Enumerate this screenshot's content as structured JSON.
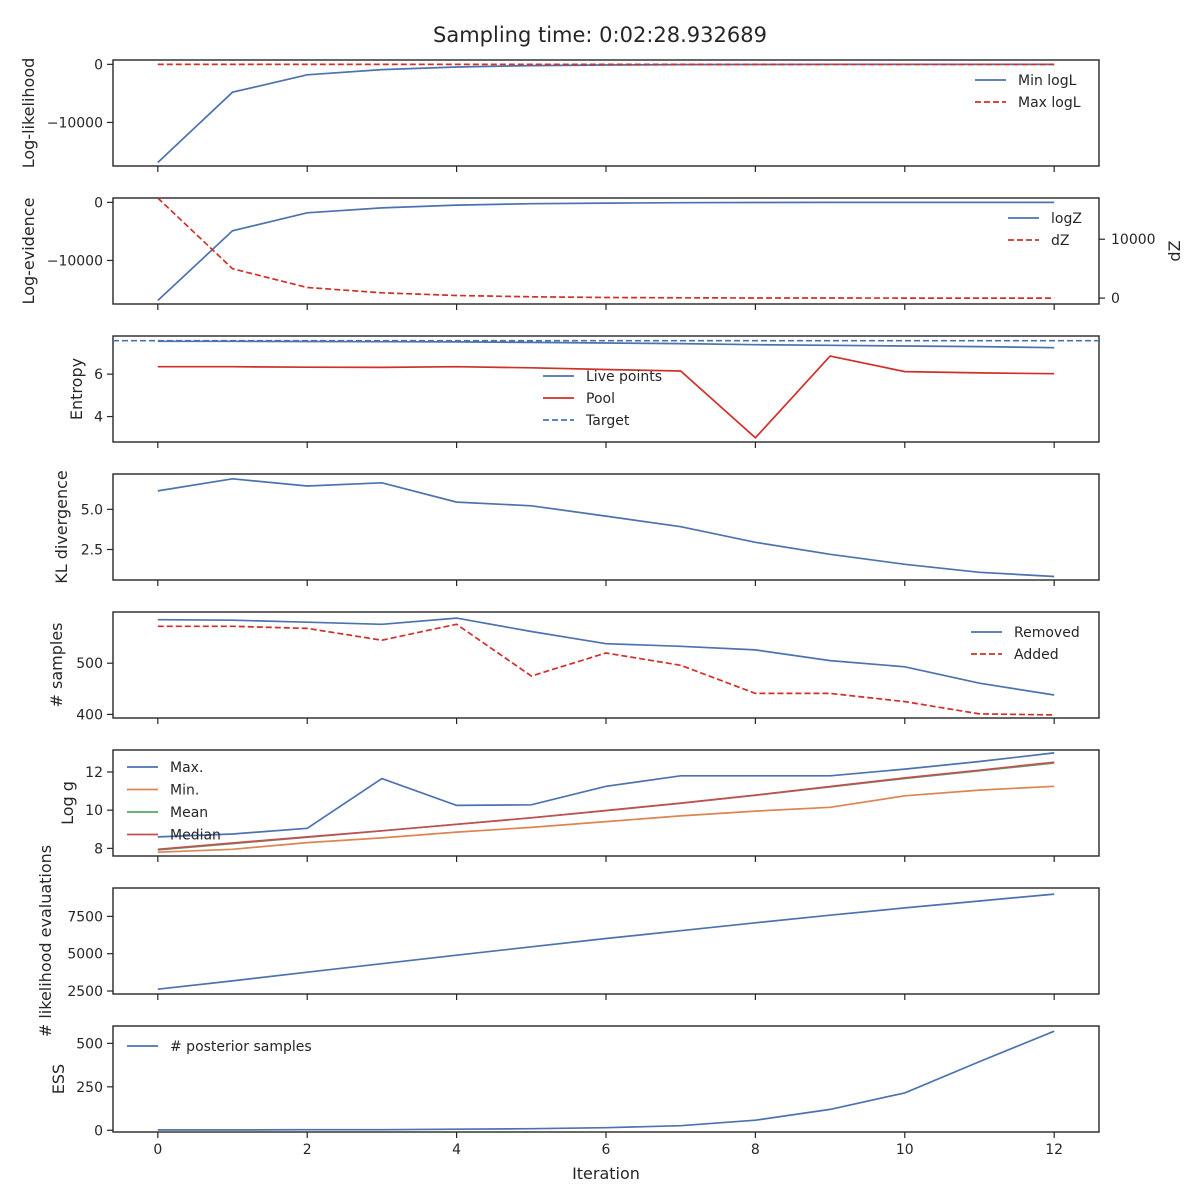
{
  "figure": {
    "title": "Sampling time: 0:02:28.932689",
    "xlabel": "Iteration",
    "x_ticks": [
      0,
      2,
      4,
      6,
      8,
      10,
      12
    ]
  },
  "colors": {
    "blue": "#4c72b0",
    "red": "#d03028",
    "orange": "#dd8452",
    "green": "#55a868",
    "median_red": "#c44e52",
    "axis": "#262626"
  },
  "chart_data": [
    {
      "type": "line",
      "ylabel": "Log-likelihood",
      "x": [
        0,
        1,
        2,
        3,
        4,
        5,
        6,
        7,
        8,
        9,
        10,
        11,
        12
      ],
      "ylim": [
        -17500,
        750
      ],
      "y_ticks": [
        0,
        -10000
      ],
      "y_tick_labels": [
        "0",
        "−10000"
      ],
      "legend": "upper right",
      "series": [
        {
          "name": "Min logL",
          "color": "blue",
          "dash": false,
          "values": [
            -16900,
            -4800,
            -1800,
            -900,
            -450,
            -220,
            -110,
            -50,
            -25,
            -12,
            -6,
            -3,
            -1
          ]
        },
        {
          "name": "Max logL",
          "color": "red",
          "dash": true,
          "values": [
            -5,
            -4,
            -3,
            -3,
            -2,
            -2,
            -2,
            -2,
            -1,
            -1,
            -1,
            -1,
            -1
          ]
        }
      ]
    },
    {
      "type": "line",
      "ylabel": "Log-evidence",
      "x": [
        0,
        1,
        2,
        3,
        4,
        5,
        6,
        7,
        8,
        9,
        10,
        11,
        12
      ],
      "ylim": [
        -17500,
        750
      ],
      "y_ticks": [
        0,
        -10000
      ],
      "y_tick_labels": [
        "0",
        "−10000"
      ],
      "secondary_ylabel": "dZ",
      "secondary_ylim": [
        -1000,
        17000
      ],
      "secondary_y_ticks": [
        0,
        10000
      ],
      "secondary_y_tick_labels": [
        "0",
        "10000"
      ],
      "legend": "upper right",
      "series": [
        {
          "name": "logZ",
          "color": "blue",
          "dash": false,
          "axis": "left",
          "values": [
            -16900,
            -4900,
            -1800,
            -950,
            -480,
            -230,
            -120,
            -60,
            -30,
            -15,
            -8,
            -4,
            -2
          ]
        },
        {
          "name": "dZ",
          "color": "red",
          "dash": true,
          "axis": "right",
          "values": [
            17000,
            5000,
            1800,
            900,
            450,
            220,
            110,
            50,
            25,
            12,
            6,
            3,
            1
          ]
        }
      ]
    },
    {
      "type": "line",
      "ylabel": "Entropy",
      "x": [
        0,
        1,
        2,
        3,
        4,
        5,
        6,
        7,
        8,
        9,
        10,
        11,
        12
      ],
      "ylim": [
        2.8,
        7.8
      ],
      "y_ticks": [
        4,
        6
      ],
      "y_tick_labels": [
        "4",
        "6"
      ],
      "legend": "center",
      "series": [
        {
          "name": "Live points",
          "color": "blue",
          "dash": false,
          "values": [
            7.55,
            7.55,
            7.54,
            7.53,
            7.52,
            7.5,
            7.47,
            7.44,
            7.39,
            7.36,
            7.33,
            7.3,
            7.25
          ]
        },
        {
          "name": "Pool",
          "color": "red",
          "dash": false,
          "values": [
            6.35,
            6.35,
            6.33,
            6.32,
            6.35,
            6.3,
            6.22,
            6.15,
            3.0,
            6.85,
            6.12,
            6.06,
            6.02
          ]
        },
        {
          "name": "Target",
          "color": "blue",
          "dash": true,
          "hline": 7.58
        }
      ]
    },
    {
      "type": "line",
      "ylabel": "KL divergence",
      "x": [
        0,
        1,
        2,
        3,
        4,
        5,
        6,
        7,
        8,
        9,
        10,
        11,
        12
      ],
      "ylim": [
        0.6,
        7.2
      ],
      "y_ticks": [
        2.5,
        5.0
      ],
      "y_tick_labels": [
        "2.5",
        "5.0"
      ],
      "series": [
        {
          "name": "",
          "color": "blue",
          "dash": false,
          "values": [
            6.15,
            6.9,
            6.45,
            6.65,
            5.45,
            5.22,
            4.58,
            3.92,
            2.95,
            2.2,
            1.58,
            1.08,
            0.82
          ]
        }
      ]
    },
    {
      "type": "line",
      "ylabel": "# samples",
      "x": [
        0,
        1,
        2,
        3,
        4,
        5,
        6,
        7,
        8,
        9,
        10,
        11,
        12
      ],
      "ylim": [
        393,
        600
      ],
      "y_ticks": [
        400,
        500
      ],
      "y_tick_labels": [
        "400",
        "500"
      ],
      "legend": "upper right",
      "series": [
        {
          "name": "Removed",
          "color": "blue",
          "dash": false,
          "values": [
            585,
            584,
            580,
            576,
            588,
            562,
            538,
            533,
            526,
            505,
            493,
            461,
            438
          ]
        },
        {
          "name": "Added",
          "color": "red",
          "dash": true,
          "values": [
            572,
            572,
            568,
            545,
            576,
            475,
            520,
            496,
            441,
            441,
            425,
            401,
            399
          ]
        }
      ]
    },
    {
      "type": "line",
      "ylabel": "Log g",
      "x": [
        0,
        1,
        2,
        3,
        4,
        5,
        6,
        7,
        8,
        9,
        10,
        11,
        12
      ],
      "ylim": [
        7.6,
        13.15
      ],
      "y_ticks": [
        8,
        10,
        12
      ],
      "y_tick_labels": [
        "8",
        "10",
        "12"
      ],
      "legend": "upper left",
      "series": [
        {
          "name": "Max.",
          "color": "blue",
          "dash": false,
          "values": [
            8.6,
            8.75,
            9.05,
            11.65,
            10.25,
            10.28,
            11.25,
            11.8,
            11.8,
            11.8,
            12.15,
            12.55,
            13.0
          ]
        },
        {
          "name": "Min.",
          "color": "orange",
          "dash": false,
          "values": [
            7.8,
            7.95,
            8.3,
            8.55,
            8.85,
            9.1,
            9.4,
            9.7,
            9.95,
            10.15,
            10.75,
            11.05,
            11.25
          ]
        },
        {
          "name": "Mean",
          "color": "green",
          "dash": false,
          "values": [
            7.92,
            8.25,
            8.58,
            8.92,
            9.26,
            9.6,
            9.97,
            10.36,
            10.78,
            11.22,
            11.66,
            12.06,
            12.47
          ]
        },
        {
          "name": "Median",
          "color": "median_red",
          "dash": false,
          "values": [
            7.95,
            8.28,
            8.6,
            8.92,
            9.26,
            9.6,
            9.98,
            10.37,
            10.79,
            11.24,
            11.69,
            12.09,
            12.51
          ]
        }
      ]
    },
    {
      "type": "line",
      "ylabel": "# likelihood evaluations",
      "x": [
        0,
        1,
        2,
        3,
        4,
        5,
        6,
        7,
        8,
        9,
        10,
        11,
        12
      ],
      "ylim": [
        2300,
        9400
      ],
      "y_ticks": [
        2500,
        5000,
        7500
      ],
      "y_tick_labels": [
        "2500",
        "5000",
        "7500"
      ],
      "series": [
        {
          "name": "",
          "color": "blue",
          "dash": false,
          "values": [
            2620,
            3180,
            3760,
            4330,
            4900,
            5460,
            6020,
            6540,
            7070,
            7580,
            8070,
            8530,
            8990
          ]
        }
      ]
    },
    {
      "type": "line",
      "ylabel": "ESS",
      "x": [
        0,
        1,
        2,
        3,
        4,
        5,
        6,
        7,
        8,
        9,
        10,
        11,
        12
      ],
      "ylim": [
        -10,
        600
      ],
      "y_ticks": [
        0,
        250,
        500
      ],
      "y_tick_labels": [
        "0",
        "250",
        "500"
      ],
      "legend": "upper left",
      "series": [
        {
          "name": "# posterior samples",
          "color": "blue",
          "dash": false,
          "values": [
            2,
            2,
            3,
            3,
            6,
            9,
            15,
            26,
            58,
            120,
            215,
            395,
            570
          ]
        }
      ]
    }
  ]
}
